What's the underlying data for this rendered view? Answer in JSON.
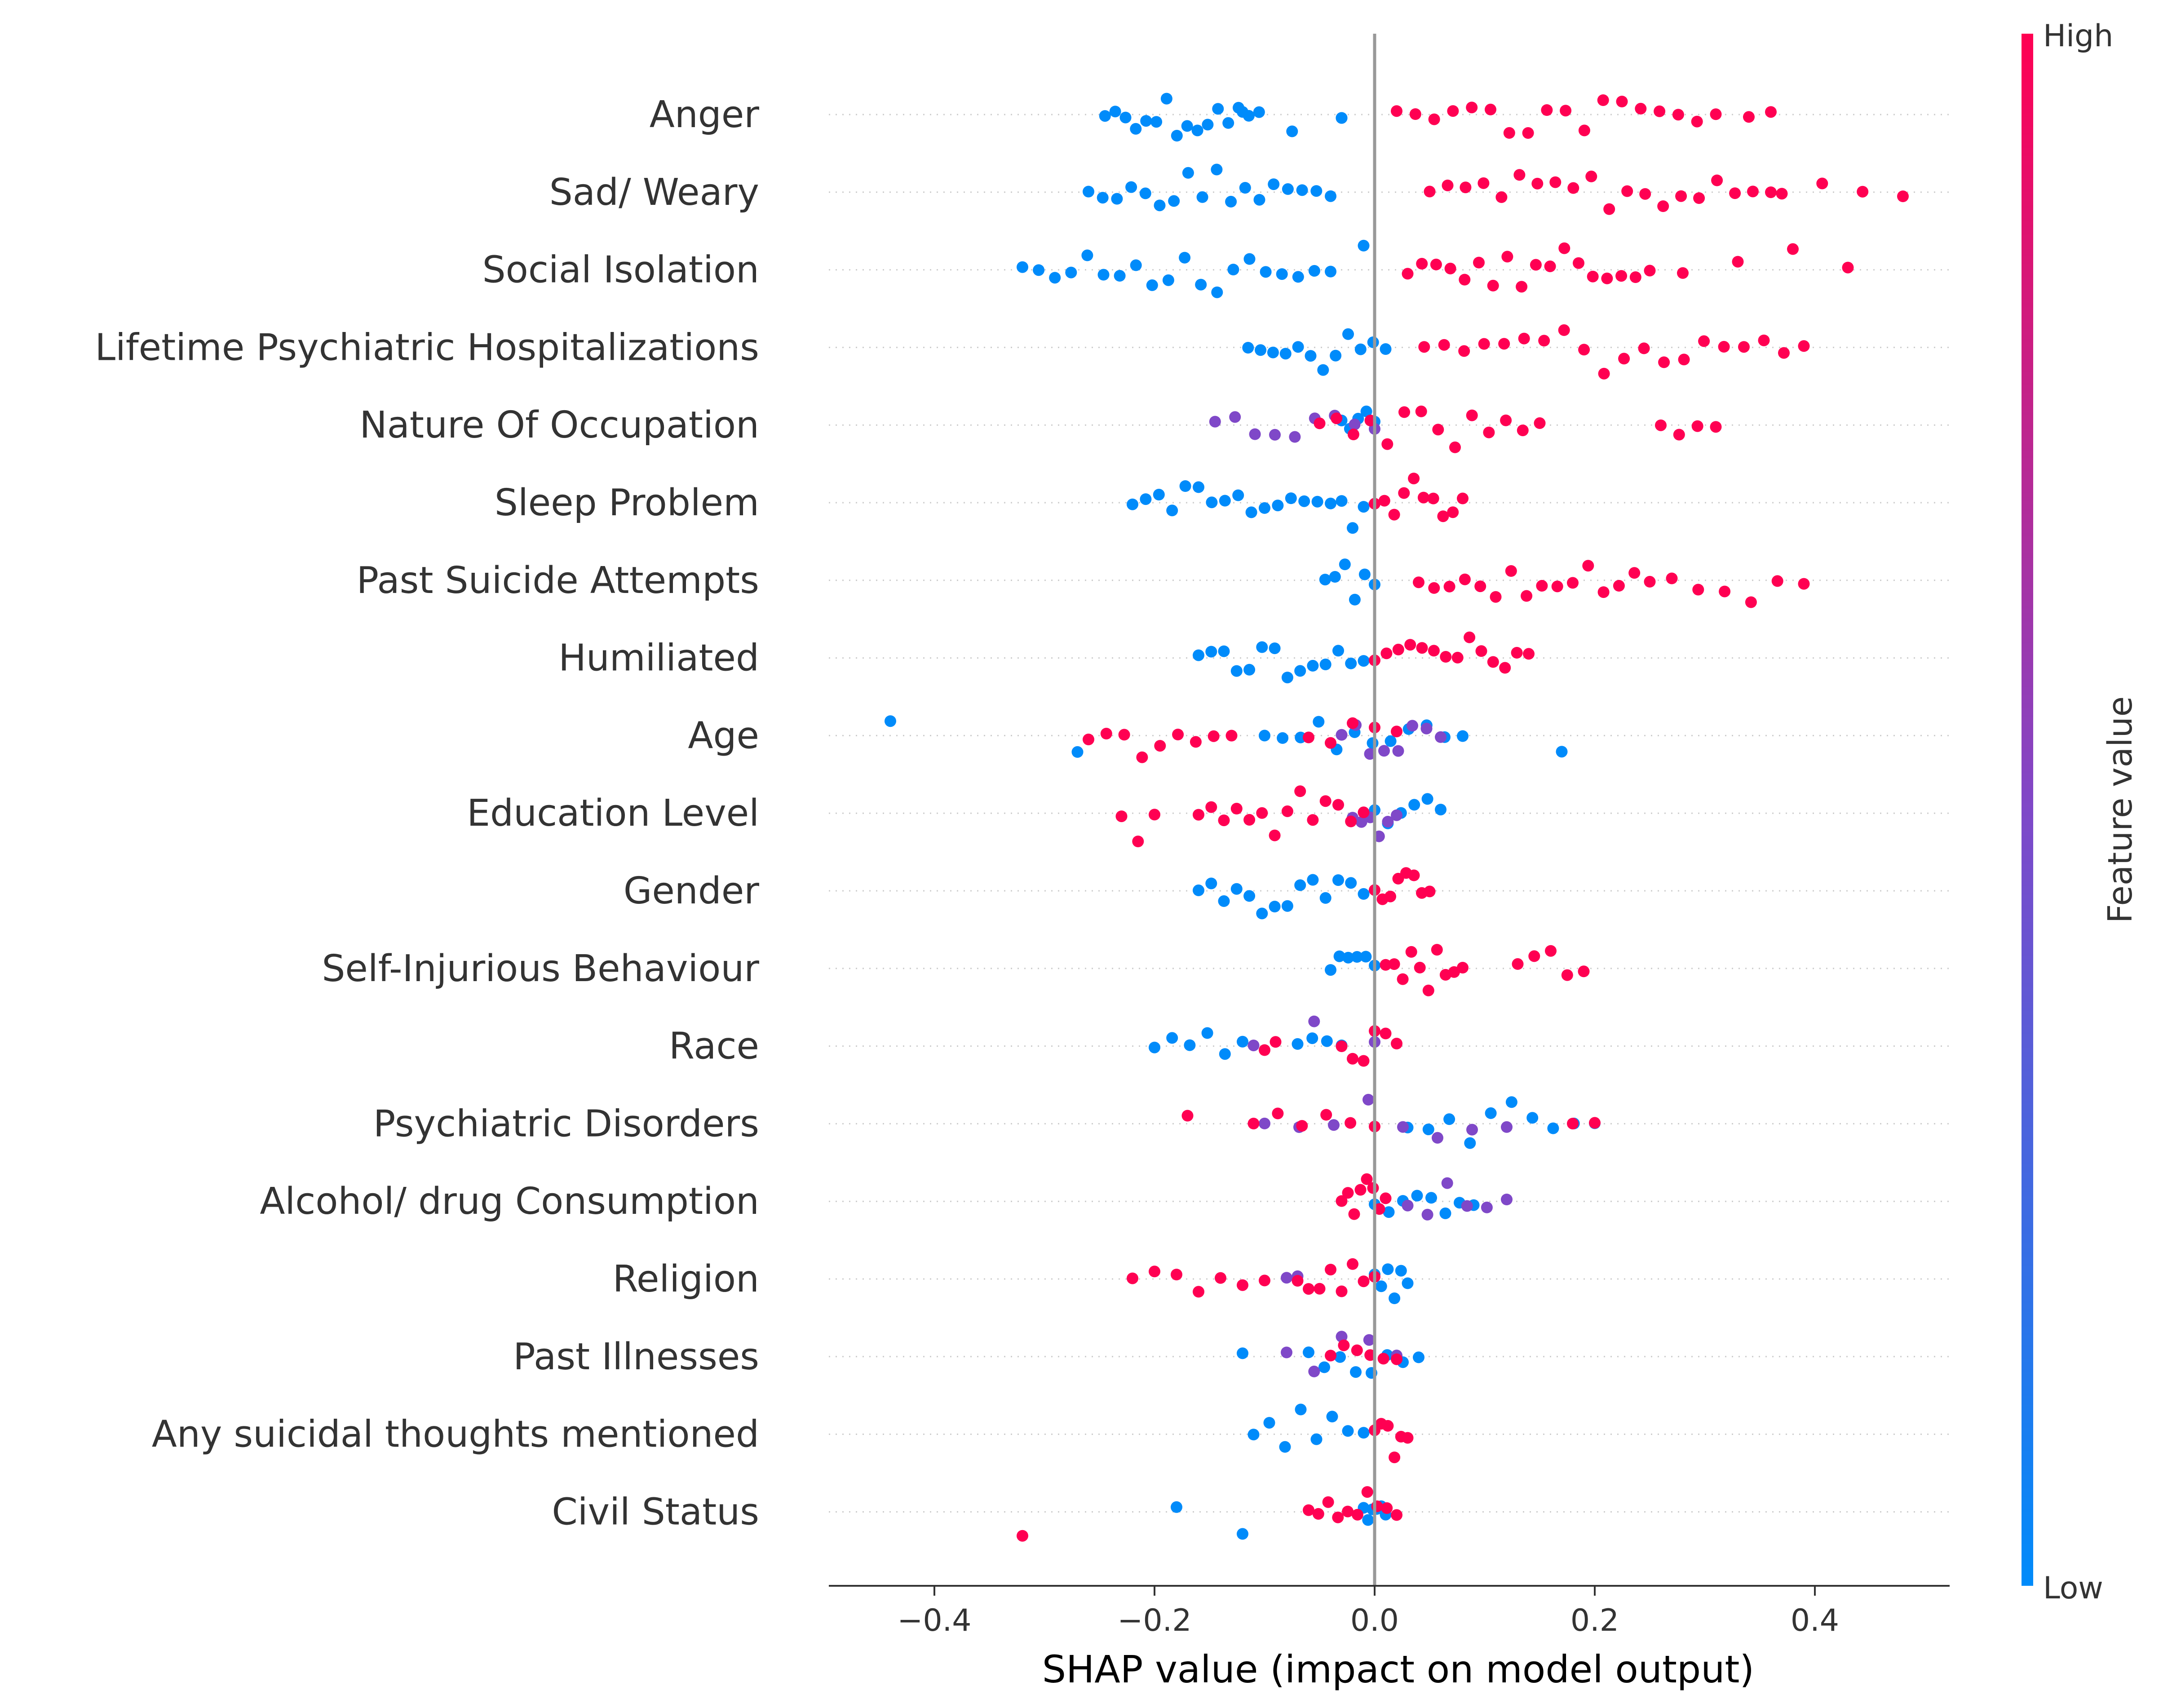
{
  "chart_data": {
    "type": "scatter",
    "subtype": "shap-beeswarm",
    "xlabel": "SHAP value (impact on model output)",
    "xlim": [
      -0.49,
      0.52
    ],
    "xticks": [
      -0.4,
      -0.2,
      0.0,
      0.2,
      0.4
    ],
    "xtick_labels": [
      "−0.4",
      "−0.2",
      "0.0",
      "0.2",
      "0.4"
    ],
    "colorbar": {
      "title": "Feature value",
      "high_label": "High",
      "low_label": "Low",
      "high_color": "#ff0052",
      "low_color": "#008bfa",
      "mid_color": "#7f48c8"
    },
    "features": [
      {
        "name": "Anger",
        "low": [
          [
            -0.245,
            -0.105,
            16
          ],
          [
            -0.12,
            -0.03,
            3
          ],
          [
            -0.03,
            -0.02,
            1
          ]
        ],
        "mixed": [],
        "high": [
          [
            0.02,
            0.31,
            18
          ],
          [
            0.34,
            0.36,
            2
          ]
        ]
      },
      {
        "name": "Sad/ Weary",
        "low": [
          [
            -0.26,
            -0.04,
            18
          ]
        ],
        "mixed": [],
        "high": [
          [
            0.05,
            0.36,
            20
          ],
          [
            0.37,
            0.48,
            4
          ]
        ]
      },
      {
        "name": "Social Isolation",
        "low": [
          [
            -0.32,
            -0.04,
            20
          ],
          [
            -0.01,
            -0.01,
            1
          ]
        ],
        "mixed": [],
        "high": [
          [
            0.03,
            0.25,
            18
          ],
          [
            0.28,
            0.43,
            4
          ]
        ]
      },
      {
        "name": "Lifetime Psychiatric Hospitalizations",
        "low": [
          [
            -0.115,
            0.01,
            12
          ]
        ],
        "mixed": [],
        "high": [
          [
            0.045,
            0.39,
            20
          ]
        ]
      },
      {
        "name": "Nature Of Occupation",
        "low": [
          [
            -0.03,
            0.0,
            5
          ]
        ],
        "mixed": [
          [
            -0.145,
            0.0,
            9
          ]
        ],
        "high": [
          [
            -0.05,
            0.15,
            14
          ],
          [
            0.26,
            0.31,
            4
          ]
        ]
      },
      {
        "name": "Sleep Problem",
        "low": [
          [
            -0.22,
            -0.04,
            16
          ],
          [
            -0.03,
            -0.01,
            3
          ]
        ],
        "mixed": [],
        "high": [
          [
            0.0,
            0.08,
            10
          ]
        ]
      },
      {
        "name": "Past Suicide Attempts",
        "low": [
          [
            -0.045,
            0.0,
            6
          ]
        ],
        "mixed": [],
        "high": [
          [
            0.04,
            0.25,
            16
          ],
          [
            0.27,
            0.39,
            6
          ]
        ]
      },
      {
        "name": "Humiliated",
        "low": [
          [
            -0.16,
            -0.01,
            14
          ]
        ],
        "mixed": [],
        "high": [
          [
            0.0,
            0.14,
            14
          ]
        ]
      },
      {
        "name": "Age",
        "low": [
          [
            -0.44,
            -0.44,
            1
          ],
          [
            -0.27,
            -0.27,
            1
          ],
          [
            -0.1,
            0.08,
            12
          ],
          [
            0.17,
            0.17,
            1
          ]
        ],
        "mixed": [
          [
            -0.03,
            0.06,
            8
          ]
        ],
        "high": [
          [
            -0.26,
            -0.13,
            9
          ],
          [
            -0.06,
            0.02,
            5
          ]
        ]
      },
      {
        "name": "Education Level",
        "low": [
          [
            0.0,
            0.06,
            6
          ]
        ],
        "mixed": [
          [
            -0.02,
            0.02,
            6
          ]
        ],
        "high": [
          [
            -0.23,
            -0.2,
            3
          ],
          [
            -0.16,
            -0.01,
            14
          ]
        ]
      },
      {
        "name": "Gender",
        "low": [
          [
            -0.16,
            -0.01,
            14
          ]
        ],
        "mixed": [],
        "high": [
          [
            0.0,
            0.05,
            8
          ]
        ]
      },
      {
        "name": "Self-Injurious Behaviour",
        "low": [
          [
            -0.04,
            0.0,
            6
          ]
        ],
        "mixed": [],
        "high": [
          [
            0.01,
            0.08,
            10
          ],
          [
            0.13,
            0.19,
            5
          ]
        ]
      },
      {
        "name": "Race",
        "low": [
          [
            -0.2,
            -0.12,
            6
          ],
          [
            -0.07,
            -0.03,
            4
          ]
        ],
        "mixed": [
          [
            -0.11,
            0.0,
            3
          ]
        ],
        "high": [
          [
            -0.1,
            -0.09,
            2
          ],
          [
            -0.03,
            0.02,
            6
          ]
        ]
      },
      {
        "name": "Psychiatric Disorders",
        "low": [
          [
            0.03,
            0.2,
            10
          ]
        ],
        "mixed": [
          [
            -0.1,
            0.12,
            8
          ]
        ],
        "high": [
          [
            -0.17,
            -0.17,
            1
          ],
          [
            -0.11,
            0.0,
            6
          ],
          [
            0.18,
            0.2,
            2
          ]
        ]
      },
      {
        "name": "Alcohol/ drug Consumption",
        "low": [
          [
            0.0,
            0.09,
            8
          ]
        ],
        "mixed": [
          [
            0.03,
            0.12,
            6
          ]
        ],
        "high": [
          [
            -0.03,
            0.01,
            8
          ]
        ]
      },
      {
        "name": "Religion",
        "low": [
          [
            0.0,
            0.03,
            6
          ]
        ],
        "mixed": [
          [
            -0.08,
            -0.07,
            2
          ]
        ],
        "high": [
          [
            -0.22,
            -0.1,
            7
          ],
          [
            -0.07,
            0.0,
            8
          ]
        ]
      },
      {
        "name": "Past Illnesses",
        "low": [
          [
            -0.12,
            -0.12,
            1
          ],
          [
            -0.06,
            0.04,
            8
          ]
        ],
        "mixed": [
          [
            -0.08,
            0.02,
            5
          ]
        ],
        "high": [
          [
            -0.04,
            0.02,
            6
          ]
        ]
      },
      {
        "name": "Any suicidal thoughts mentioned",
        "low": [
          [
            -0.11,
            -0.01,
            8
          ]
        ],
        "mixed": [],
        "high": [
          [
            0.0,
            0.03,
            6
          ]
        ]
      },
      {
        "name": "Civil Status",
        "low": [
          [
            -0.18,
            -0.18,
            1
          ],
          [
            -0.12,
            -0.12,
            1
          ],
          [
            -0.01,
            0.01,
            6
          ]
        ],
        "mixed": [],
        "high": [
          [
            -0.32,
            -0.32,
            1
          ],
          [
            -0.06,
            0.02,
            10
          ]
        ]
      }
    ]
  }
}
